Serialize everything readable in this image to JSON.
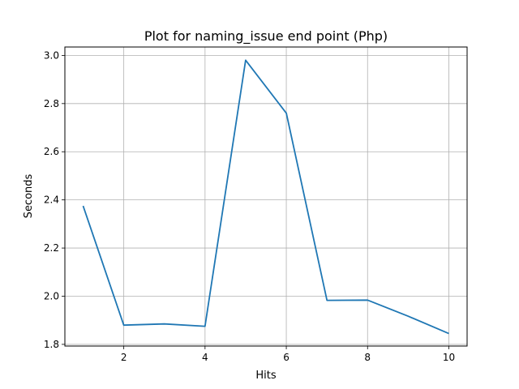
{
  "chart_data": {
    "type": "line",
    "title": "Plot for naming_issue end point (Php)",
    "xlabel": "Hits",
    "ylabel": "Seconds",
    "xlim": [
      0.55,
      10.45
    ],
    "ylim": [
      1.793,
      3.035
    ],
    "x_ticks": [
      2,
      4,
      6,
      8,
      10
    ],
    "x_tick_labels": [
      "2",
      "4",
      "6",
      "8",
      "10"
    ],
    "y_ticks": [
      1.8,
      2.0,
      2.2,
      2.4,
      2.6,
      2.8,
      3.0
    ],
    "y_tick_labels": [
      "1.8",
      "2.0",
      "2.2",
      "2.4",
      "2.6",
      "2.8",
      "3.0"
    ],
    "grid": true,
    "series": [
      {
        "color": "#1f77b4",
        "x": [
          1,
          2,
          3,
          4,
          5,
          6,
          7,
          8,
          9,
          10
        ],
        "y": [
          2.375,
          1.88,
          1.885,
          1.875,
          2.98,
          2.76,
          1.983,
          1.984,
          1.917,
          1.845
        ]
      }
    ]
  }
}
